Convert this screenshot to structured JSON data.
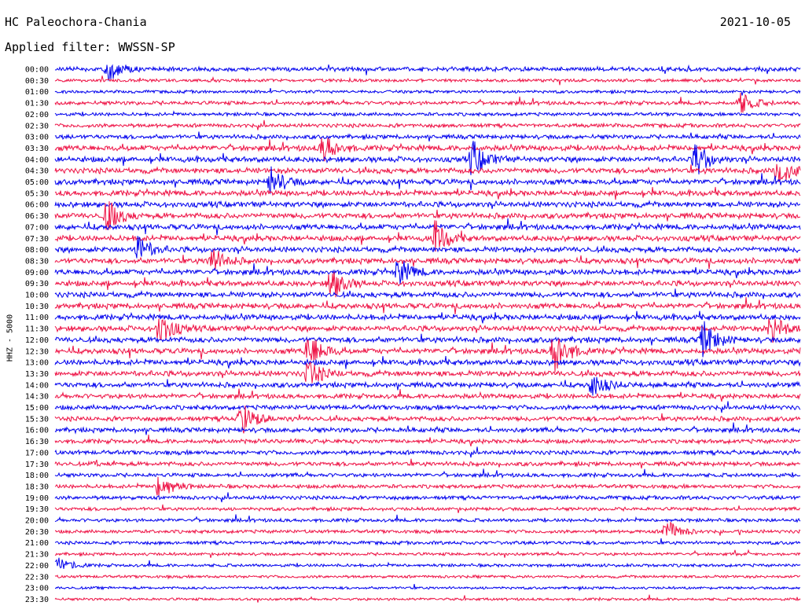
{
  "header": {
    "station": "HC Paleochora-Chania",
    "date": "2021-10-05",
    "filter": "Applied filter: WWSSN-SP"
  },
  "colors": {
    "trace_a": "#0000ee",
    "trace_b": "#ee1144",
    "text": "#000000",
    "background": "#ffffff"
  },
  "chart_data": {
    "type": "line",
    "title": "HC Paleochora-Chania",
    "ylabel": "HHZ - 5000",
    "rows": [
      "00:00",
      "00:30",
      "01:00",
      "01:30",
      "02:00",
      "02:30",
      "03:00",
      "03:30",
      "04:00",
      "04:30",
      "05:00",
      "05:30",
      "06:00",
      "06:30",
      "07:00",
      "07:30",
      "08:00",
      "08:30",
      "09:00",
      "09:30",
      "10:00",
      "10:30",
      "11:00",
      "11:30",
      "12:00",
      "12:30",
      "13:00",
      "13:30",
      "14:00",
      "14:30",
      "15:00",
      "15:30",
      "16:00",
      "16:30",
      "17:00",
      "17:30",
      "18:00",
      "18:30",
      "19:00",
      "19:30",
      "20:00",
      "20:30",
      "21:00",
      "21:30",
      "22:00",
      "22:30",
      "23:00",
      "23:30"
    ],
    "row_activity": [
      0.7,
      0.4,
      0.4,
      0.6,
      0.5,
      0.6,
      0.7,
      1.0,
      1.0,
      1.0,
      1.0,
      1.0,
      1.0,
      1.0,
      1.0,
      1.0,
      1.0,
      1.0,
      1.0,
      1.0,
      1.0,
      1.0,
      1.0,
      1.0,
      1.0,
      1.0,
      1.0,
      1.0,
      0.9,
      0.8,
      0.8,
      0.8,
      0.8,
      0.7,
      0.7,
      0.7,
      0.6,
      0.6,
      0.6,
      0.5,
      0.5,
      0.5,
      0.5,
      0.4,
      0.4,
      0.35,
      0.3,
      0.3
    ],
    "events": [
      {
        "row": "00:00",
        "t": 0.07,
        "amp": 16
      },
      {
        "row": "01:30",
        "t": 0.92,
        "amp": 14
      },
      {
        "row": "03:30",
        "t": 0.36,
        "amp": 18
      },
      {
        "row": "04:00",
        "t": 0.56,
        "amp": 24
      },
      {
        "row": "04:00",
        "t": 0.86,
        "amp": 22
      },
      {
        "row": "04:30",
        "t": 0.97,
        "amp": 22
      },
      {
        "row": "05:00",
        "t": 0.29,
        "amp": 18
      },
      {
        "row": "06:30",
        "t": 0.07,
        "amp": 22
      },
      {
        "row": "07:30",
        "t": 0.51,
        "amp": 22
      },
      {
        "row": "08:00",
        "t": 0.11,
        "amp": 18
      },
      {
        "row": "08:30",
        "t": 0.21,
        "amp": 18
      },
      {
        "row": "09:00",
        "t": 0.46,
        "amp": 18
      },
      {
        "row": "09:30",
        "t": 0.37,
        "amp": 22
      },
      {
        "row": "11:30",
        "t": 0.14,
        "amp": 22
      },
      {
        "row": "11:30",
        "t": 0.96,
        "amp": 22
      },
      {
        "row": "12:00",
        "t": 0.87,
        "amp": 24
      },
      {
        "row": "12:30",
        "t": 0.67,
        "amp": 30
      },
      {
        "row": "12:30",
        "t": 0.34,
        "amp": 24
      },
      {
        "row": "13:30",
        "t": 0.34,
        "amp": 18
      },
      {
        "row": "14:00",
        "t": 0.72,
        "amp": 16
      },
      {
        "row": "15:30",
        "t": 0.25,
        "amp": 22
      },
      {
        "row": "18:30",
        "t": 0.14,
        "amp": 20
      },
      {
        "row": "20:30",
        "t": 0.82,
        "amp": 16
      },
      {
        "row": "22:00",
        "t": 0.0,
        "amp": 12
      }
    ]
  }
}
